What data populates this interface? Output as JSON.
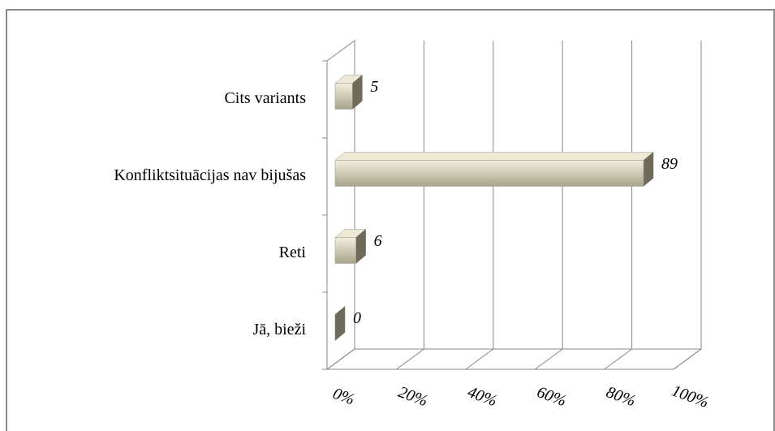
{
  "chart_data": {
    "type": "bar3d_horizontal",
    "categories": [
      "Jā, bieži",
      "Reti",
      "Konfliktsituācijas nav bijušas",
      "Cits variants"
    ],
    "values": [
      0,
      6,
      89,
      5
    ],
    "color": "#d8d4b8",
    "xlim": [
      0,
      100
    ],
    "xticks": [
      {
        "value": 0,
        "label": "0%"
      },
      {
        "value": 20,
        "label": "20%"
      },
      {
        "value": 40,
        "label": "40%"
      },
      {
        "value": 60,
        "label": "60%"
      },
      {
        "value": 80,
        "label": "80%"
      },
      {
        "value": 100,
        "label": "100%"
      }
    ],
    "grid": true
  }
}
